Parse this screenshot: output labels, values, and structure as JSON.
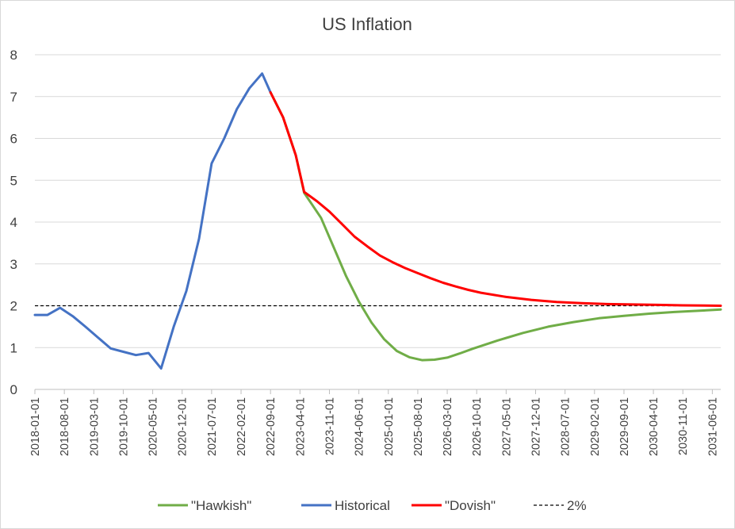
{
  "chart_data": {
    "type": "line",
    "title": "US Inflation",
    "xlabel": "",
    "ylabel": "",
    "ylim": [
      0,
      8
    ],
    "yticks": [
      0,
      1,
      2,
      3,
      4,
      5,
      6,
      7,
      8
    ],
    "gridlines": "horizontal",
    "legend_position": "bottom",
    "x_categories": [
      "2018-01-01",
      "2018-08-01",
      "2019-03-01",
      "2019-10-01",
      "2020-05-01",
      "2020-12-01",
      "2021-07-01",
      "2022-02-01",
      "2022-09-01",
      "2023-04-01",
      "2023-11-01",
      "2024-06-01",
      "2025-01-01",
      "2025-08-01",
      "2026-03-01",
      "2026-10-01",
      "2027-05-01",
      "2027-12-01",
      "2028-07-01",
      "2029-02-01",
      "2029-09-01",
      "2030-04-01",
      "2030-11-01",
      "2031-06-01"
    ],
    "x_start": "2018-01-01",
    "x_end": "2031-08-01",
    "series": [
      {
        "name": "\"Hawkish\"",
        "color": "#70ad47",
        "dash": "",
        "points": [
          [
            "2022-09-01",
            7.1
          ],
          [
            "2022-12-01",
            6.5
          ],
          [
            "2023-03-01",
            5.6
          ],
          [
            "2023-05-01",
            4.7
          ],
          [
            "2023-09-01",
            4.1
          ],
          [
            "2023-12-01",
            3.4
          ],
          [
            "2024-03-01",
            2.7
          ],
          [
            "2024-06-01",
            2.1
          ],
          [
            "2024-09-01",
            1.6
          ],
          [
            "2024-12-01",
            1.2
          ],
          [
            "2025-03-01",
            0.92
          ],
          [
            "2025-06-01",
            0.77
          ],
          [
            "2025-09-01",
            0.7
          ],
          [
            "2025-12-01",
            0.71
          ],
          [
            "2026-03-01",
            0.76
          ],
          [
            "2026-06-01",
            0.86
          ],
          [
            "2026-09-01",
            0.97
          ],
          [
            "2027-03-01",
            1.17
          ],
          [
            "2027-09-01",
            1.35
          ],
          [
            "2028-03-01",
            1.5
          ],
          [
            "2028-09-01",
            1.61
          ],
          [
            "2029-03-01",
            1.7
          ],
          [
            "2029-09-01",
            1.76
          ],
          [
            "2030-03-01",
            1.81
          ],
          [
            "2030-09-01",
            1.85
          ],
          [
            "2031-03-01",
            1.88
          ],
          [
            "2031-08-01",
            1.91
          ]
        ]
      },
      {
        "name": "Historical",
        "color": "#4472c4",
        "dash": "",
        "points": [
          [
            "2018-01-01",
            1.78
          ],
          [
            "2018-04-01",
            1.78
          ],
          [
            "2018-07-01",
            1.95
          ],
          [
            "2018-10-01",
            1.75
          ],
          [
            "2019-01-01",
            1.5
          ],
          [
            "2019-04-01",
            1.24
          ],
          [
            "2019-07-01",
            0.98
          ],
          [
            "2019-10-01",
            0.9
          ],
          [
            "2020-01-01",
            0.82
          ],
          [
            "2020-04-01",
            0.87
          ],
          [
            "2020-07-01",
            0.5
          ],
          [
            "2020-10-01",
            1.5
          ],
          [
            "2021-01-01",
            2.35
          ],
          [
            "2021-04-01",
            3.6
          ],
          [
            "2021-07-01",
            5.4
          ],
          [
            "2021-10-01",
            6.0
          ],
          [
            "2022-01-01",
            6.7
          ],
          [
            "2022-04-01",
            7.2
          ],
          [
            "2022-07-01",
            7.55
          ],
          [
            "2022-09-01",
            7.1
          ]
        ]
      },
      {
        "name": "\"Dovish\"",
        "color": "#ff0000",
        "dash": "",
        "points": [
          [
            "2022-09-01",
            7.1
          ],
          [
            "2022-12-01",
            6.5
          ],
          [
            "2023-03-01",
            5.6
          ],
          [
            "2023-05-01",
            4.72
          ],
          [
            "2023-08-01",
            4.5
          ],
          [
            "2023-11-01",
            4.25
          ],
          [
            "2024-02-01",
            3.95
          ],
          [
            "2024-05-01",
            3.65
          ],
          [
            "2024-08-01",
            3.42
          ],
          [
            "2024-11-01",
            3.2
          ],
          [
            "2025-02-01",
            3.04
          ],
          [
            "2025-05-01",
            2.9
          ],
          [
            "2025-08-01",
            2.78
          ],
          [
            "2025-11-01",
            2.66
          ],
          [
            "2026-02-01",
            2.55
          ],
          [
            "2026-05-01",
            2.46
          ],
          [
            "2026-08-01",
            2.38
          ],
          [
            "2026-11-01",
            2.31
          ],
          [
            "2027-05-01",
            2.21
          ],
          [
            "2027-11-01",
            2.14
          ],
          [
            "2028-05-01",
            2.09
          ],
          [
            "2028-11-01",
            2.06
          ],
          [
            "2029-05-01",
            2.04
          ],
          [
            "2029-11-01",
            2.03
          ],
          [
            "2030-05-01",
            2.02
          ],
          [
            "2030-11-01",
            2.01
          ],
          [
            "2031-08-01",
            2.0
          ]
        ]
      },
      {
        "name": "2%",
        "color": "#000000",
        "dash": "dashed",
        "points": [
          [
            "2018-01-01",
            2.0
          ],
          [
            "2031-08-01",
            2.0
          ]
        ]
      }
    ]
  }
}
